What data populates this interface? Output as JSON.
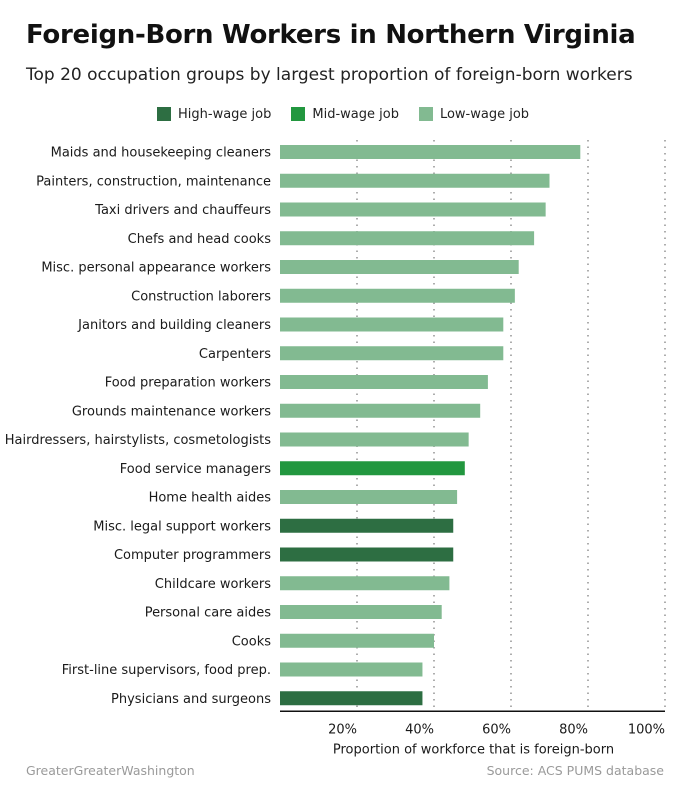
{
  "chart_data": {
    "type": "bar",
    "orientation": "horizontal",
    "title": "Foreign-Born Workers in Northern Virginia",
    "subtitle": "Top 20 occupation groups by largest proportion of foreign-born workers",
    "xlabel": "Proportion of workforce that is foreign-born",
    "ylabel": "",
    "xlim": [
      0,
      100
    ],
    "x_ticks": [
      "20%",
      "40%",
      "60%",
      "80%",
      "100%"
    ],
    "x_tick_values": [
      20,
      40,
      60,
      80,
      100
    ],
    "grid": "vertical dotted",
    "legend": [
      {
        "key": "high",
        "label": "High-wage job",
        "color": "#2d6e42"
      },
      {
        "key": "mid",
        "label": "Mid-wage job",
        "color": "#22973f"
      },
      {
        "key": "low",
        "label": "Low-wage job",
        "color": "#82ba91"
      }
    ],
    "categories": [
      "Maids and housekeeping cleaners",
      "Painters, construction, maintenance",
      "Taxi drivers and chauffeurs",
      "Chefs and head cooks",
      "Misc. personal appearance workers",
      "Construction laborers",
      "Janitors and building cleaners",
      "Carpenters",
      "Food preparation workers",
      "Grounds maintenance workers",
      "Hairdressers, hairstylists, cosmetologists",
      "Food service managers",
      "Home health aides",
      "Misc. legal support workers",
      "Computer programmers",
      "Childcare workers",
      "Personal care aides",
      "Cooks",
      "First-line supervisors, food prep.",
      "Physicians and surgeons"
    ],
    "values": [
      78,
      70,
      69,
      66,
      62,
      61,
      58,
      58,
      54,
      52,
      49,
      48,
      46,
      45,
      45,
      44,
      42,
      40,
      37,
      37
    ],
    "wage_group": [
      "low",
      "low",
      "low",
      "low",
      "low",
      "low",
      "low",
      "low",
      "low",
      "low",
      "low",
      "mid",
      "low",
      "high",
      "high",
      "low",
      "low",
      "low",
      "low",
      "high"
    ]
  },
  "footer": {
    "brand": "GreaterGreaterWashington",
    "source": "Source: ACS PUMS database"
  }
}
